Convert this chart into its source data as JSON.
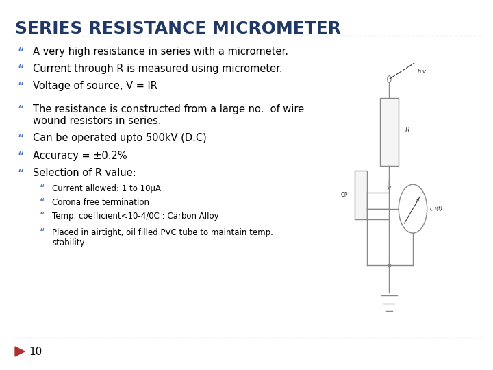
{
  "title": "SERIES RESISTANCE MICROMETER",
  "title_color": "#1F3864",
  "background_color": "#ffffff",
  "bullet_color": "#4472C4",
  "text_color": "#000000",
  "dashed_line_color": "#999999",
  "bullet_char": "“",
  "main_bullets": [
    "A very high resistance in series with a micrometer.",
    "Current through R is measured using micrometer.",
    "Voltage of source, V = IR",
    "The resistance is constructed from a large no.  of wire\nwound resistors in series.",
    "Can be operated upto 500kV (D.C)",
    "Accuracy = ±0.2%",
    "Selection of R value:"
  ],
  "sub_bullets": [
    "Current allowed: 1 to 10μA",
    "Corona free termination",
    "Temp. coefficient<10-4/0C : Carbon Alloy",
    "Placed in airtight, oil filled PVC tube to maintain temp.\nstability"
  ],
  "footer_number": "10",
  "footer_arrow_color": "#B03030",
  "title_fontsize": 18,
  "main_fontsize": 10.5,
  "sub_fontsize": 8.5,
  "circuit_color": "#888888"
}
